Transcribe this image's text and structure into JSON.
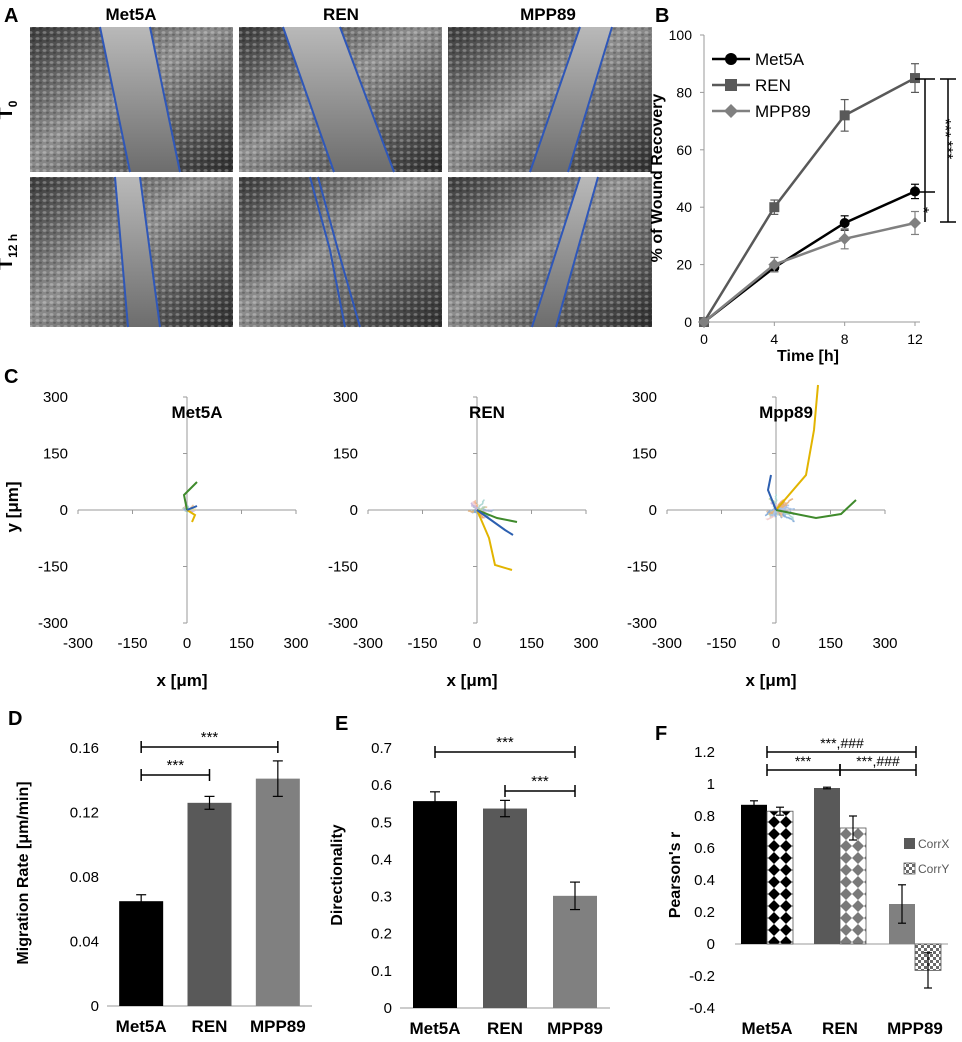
{
  "colors": {
    "met5a": "#000000",
    "ren": "#595959",
    "mpp89": "#808080",
    "trace": "#2f57b8",
    "axis": "#9a9a9a"
  },
  "panelA": {
    "letter": "A",
    "columns": [
      "Met5A",
      "REN",
      "MPP89"
    ],
    "rows": [
      {
        "main": "T",
        "sub": "0"
      },
      {
        "main": "T",
        "sub": "12 h"
      }
    ]
  },
  "chart_data": [
    {
      "id": "B",
      "letter": "B",
      "type": "line",
      "xlabel": "Time [h]",
      "ylabel": "% of Wound Recovery",
      "x": [
        0,
        4,
        8,
        12
      ],
      "xticks": [
        "0",
        "4",
        "8",
        "12"
      ],
      "ylim": [
        0,
        100
      ],
      "yticks": [
        "0",
        "20",
        "40",
        "60",
        "80",
        "100"
      ],
      "series": [
        {
          "name": "Met5A",
          "marker": "circle",
          "values": [
            0,
            19,
            34.5,
            45.5
          ],
          "errors": [
            0,
            1.5,
            2.5,
            2.5
          ]
        },
        {
          "name": "REN",
          "marker": "square",
          "values": [
            0,
            40,
            72,
            85
          ],
          "errors": [
            0,
            2.5,
            5.5,
            5
          ]
        },
        {
          "name": "MPP89",
          "marker": "diamond",
          "values": [
            0,
            20,
            29,
            34.5
          ],
          "errors": [
            0,
            2.5,
            3.5,
            4
          ]
        }
      ],
      "significance": [
        "***",
        "***",
        "*"
      ]
    },
    {
      "id": "C",
      "letter": "C",
      "type": "scatter",
      "description_free": true,
      "xlabel": "x [μm]",
      "ylabel": "y [μm]",
      "xlim": [
        -300,
        300
      ],
      "ylim": [
        -300,
        300
      ],
      "xticks": [
        "-300",
        "-150",
        "0",
        "150",
        "300"
      ],
      "yticks": [
        "300",
        "150",
        "0",
        "-150",
        "-300"
      ],
      "plots": [
        {
          "title": "Met5A",
          "spread": 1
        },
        {
          "title": "REN",
          "spread": 2
        },
        {
          "title": "Mpp89",
          "spread": 3
        }
      ]
    },
    {
      "id": "D",
      "letter": "D",
      "type": "bar",
      "categories": [
        "Met5A",
        "REN",
        "MPP89"
      ],
      "values": [
        0.065,
        0.126,
        0.141
      ],
      "errors": [
        0.004,
        0.004,
        0.011
      ],
      "ylabel": "Migration Rate [μm/min]",
      "ylim": [
        0,
        0.16
      ],
      "yticks": [
        "0",
        "0.04",
        "0.08",
        "0.12",
        "0.16"
      ],
      "significance": [
        {
          "from": "Met5A",
          "to": "MPP89",
          "label": "***"
        },
        {
          "from": "Met5A",
          "to": "REN",
          "label": "***"
        }
      ]
    },
    {
      "id": "E",
      "letter": "E",
      "type": "bar",
      "categories": [
        "Met5A",
        "REN",
        "MPP89"
      ],
      "values": [
        0.557,
        0.537,
        0.302
      ],
      "errors": [
        0.025,
        0.022,
        0.037
      ],
      "ylabel": "Directionality",
      "ylim": [
        0,
        0.7
      ],
      "yticks": [
        "0",
        "0.1",
        "0.2",
        "0.3",
        "0.4",
        "0.5",
        "0.6",
        "0.7"
      ],
      "significance": [
        {
          "from": "Met5A",
          "to": "MPP89",
          "label": "***"
        },
        {
          "from": "REN",
          "to": "MPP89",
          "label": "***"
        }
      ]
    },
    {
      "id": "F",
      "letter": "F",
      "type": "bar",
      "categories": [
        "Met5A",
        "REN",
        "MPP89"
      ],
      "series": [
        {
          "name": "CorrX",
          "values": [
            0.87,
            0.975,
            0.25
          ],
          "errors": [
            0.025,
            0.005,
            0.12
          ]
        },
        {
          "name": "CorrY",
          "values": [
            0.83,
            0.725,
            -0.165
          ],
          "errors": [
            0.025,
            0.075,
            0.11
          ]
        }
      ],
      "ylabel": "Pearson's r",
      "ylim": [
        -0.4,
        1.2
      ],
      "yticks": [
        "-0.4",
        "-0.2",
        "0",
        "0.2",
        "0.4",
        "0.6",
        "0.8",
        "1",
        "1.2"
      ],
      "significance": [
        {
          "label": "***,###"
        },
        {
          "label": "***"
        },
        {
          "label": "***,###"
        }
      ]
    }
  ]
}
